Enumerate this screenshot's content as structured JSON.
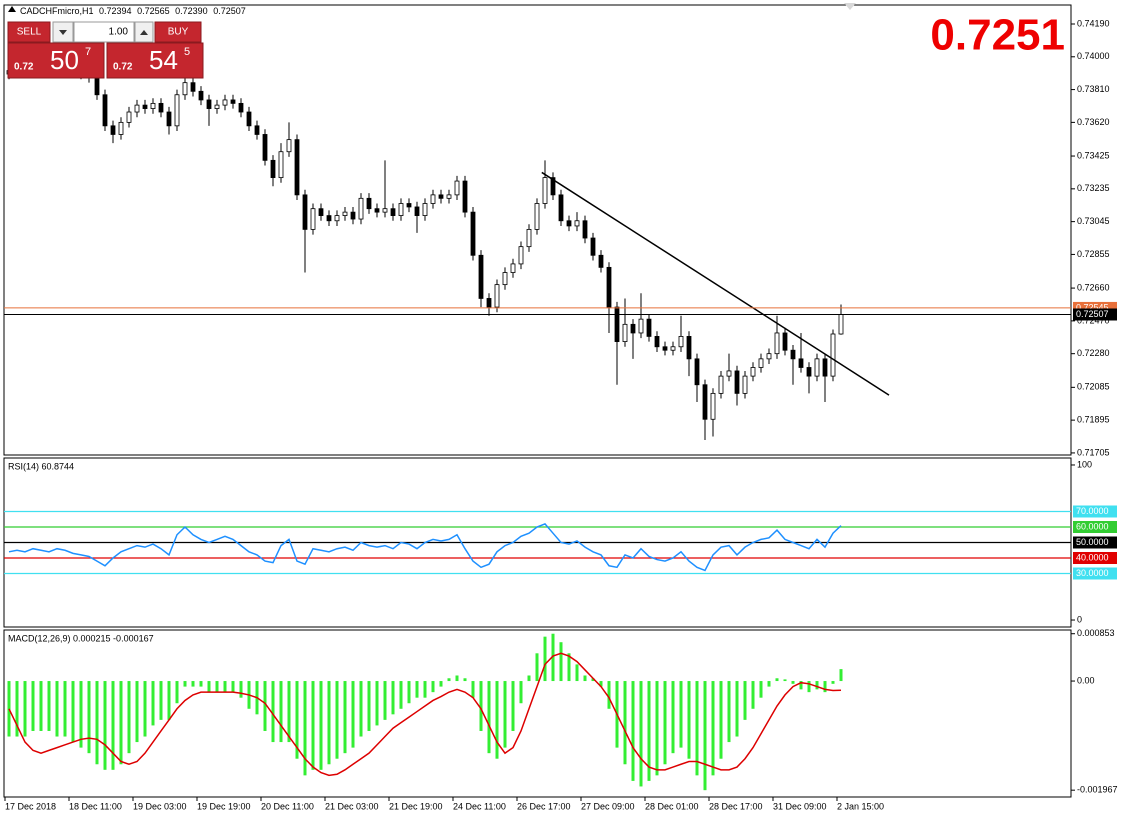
{
  "header": {
    "symbol": "CADCHFmicro,H1",
    "ohlc": [
      "0.72394",
      "0.72565",
      "0.72390",
      "0.72507"
    ]
  },
  "trade_panel": {
    "sell": "SELL",
    "buy": "BUY",
    "lots": "1.00",
    "sell_price": {
      "prefix": "0.72",
      "big": "50",
      "small": "7"
    },
    "buy_price": {
      "prefix": "0.72",
      "big": "54",
      "small": "5"
    }
  },
  "big_price": "0.7251",
  "chart_data": [
    {
      "type": "candlestick",
      "bull_color": "#ffffff",
      "bear_color": "#000000",
      "outline_color": "#000000",
      "ylim": [
        0.71693,
        0.743
      ],
      "yticks": [
        {
          "value": 0.7419,
          "label": "0.74190"
        },
        {
          "value": 0.74,
          "label": "0.74000"
        },
        {
          "value": 0.7381,
          "label": "0.73810"
        },
        {
          "value": 0.7362,
          "label": "0.73620"
        },
        {
          "value": 0.73425,
          "label": "0.73425"
        },
        {
          "value": 0.73235,
          "label": "0.73235"
        },
        {
          "value": 0.73045,
          "label": "0.73045"
        },
        {
          "value": 0.72855,
          "label": "0.72855"
        },
        {
          "value": 0.7266,
          "label": "0.72660"
        },
        {
          "value": 0.7247,
          "label": "0.72470"
        },
        {
          "value": 0.7228,
          "label": "0.72280"
        },
        {
          "value": 0.72085,
          "label": "0.72085"
        },
        {
          "value": 0.71895,
          "label": "0.71895"
        },
        {
          "value": 0.71705,
          "label": "0.71705"
        }
      ],
      "open": [
        0.739,
        0.7392,
        0.7396,
        0.7394,
        0.7398,
        0.7395,
        0.7393,
        0.7396,
        0.7394,
        0.7391,
        0.739,
        0.7388,
        0.7378,
        0.736,
        0.7355,
        0.7362,
        0.7368,
        0.7372,
        0.737,
        0.7373,
        0.7368,
        0.736,
        0.7378,
        0.7385,
        0.738,
        0.7375,
        0.737,
        0.7372,
        0.7375,
        0.7373,
        0.7368,
        0.736,
        0.7355,
        0.734,
        0.733,
        0.7345,
        0.7352,
        0.732,
        0.73,
        0.7312,
        0.7308,
        0.7305,
        0.7308,
        0.731,
        0.7306,
        0.7318,
        0.7312,
        0.731,
        0.7312,
        0.7308,
        0.7315,
        0.7313,
        0.7308,
        0.7315,
        0.732,
        0.7318,
        0.732,
        0.7328,
        0.731,
        0.7285,
        0.726,
        0.7255,
        0.7268,
        0.7275,
        0.728,
        0.729,
        0.73,
        0.7315,
        0.733,
        0.732,
        0.7305,
        0.7302,
        0.7305,
        0.7295,
        0.7285,
        0.7278,
        0.7255,
        0.7235,
        0.7245,
        0.724,
        0.7248,
        0.7238,
        0.7232,
        0.723,
        0.7232,
        0.7238,
        0.7225,
        0.721,
        0.719,
        0.7205,
        0.7215,
        0.7218,
        0.7205,
        0.7215,
        0.722,
        0.7225,
        0.7228,
        0.724,
        0.723,
        0.7225,
        0.722,
        0.7215,
        0.7225,
        0.7215,
        0.72394
      ],
      "high": [
        0.7395,
        0.7399,
        0.7399,
        0.7401,
        0.7401,
        0.7398,
        0.7399,
        0.7399,
        0.7397,
        0.7394,
        0.7393,
        0.7391,
        0.7381,
        0.7363,
        0.7365,
        0.7371,
        0.7375,
        0.7375,
        0.7376,
        0.7376,
        0.7371,
        0.7381,
        0.739,
        0.7388,
        0.7383,
        0.7378,
        0.7375,
        0.7378,
        0.7378,
        0.7376,
        0.7371,
        0.7363,
        0.7358,
        0.7343,
        0.735,
        0.7362,
        0.7355,
        0.7323,
        0.7315,
        0.7315,
        0.7311,
        0.7311,
        0.7313,
        0.7313,
        0.7321,
        0.7321,
        0.7315,
        0.734,
        0.7315,
        0.7318,
        0.7318,
        0.7316,
        0.7318,
        0.7323,
        0.7323,
        0.7323,
        0.7331,
        0.7331,
        0.7313,
        0.7288,
        0.7263,
        0.7271,
        0.7278,
        0.7283,
        0.7293,
        0.7303,
        0.7318,
        0.734,
        0.7333,
        0.7323,
        0.7308,
        0.731,
        0.7308,
        0.7298,
        0.7288,
        0.7281,
        0.7258,
        0.726,
        0.7248,
        0.7263,
        0.7251,
        0.7241,
        0.7235,
        0.7235,
        0.725,
        0.7241,
        0.7228,
        0.7213,
        0.7208,
        0.7218,
        0.7228,
        0.7221,
        0.7218,
        0.7223,
        0.7228,
        0.7231,
        0.725,
        0.7243,
        0.7233,
        0.724,
        0.7223,
        0.7228,
        0.7228,
        0.7242,
        0.72565
      ],
      "low": [
        0.7387,
        0.7389,
        0.7391,
        0.7391,
        0.7392,
        0.739,
        0.739,
        0.7391,
        0.7388,
        0.7387,
        0.7385,
        0.7375,
        0.7357,
        0.735,
        0.7352,
        0.7359,
        0.7365,
        0.7367,
        0.7367,
        0.7365,
        0.7355,
        0.7357,
        0.7375,
        0.7377,
        0.7372,
        0.736,
        0.7367,
        0.7369,
        0.737,
        0.7365,
        0.7357,
        0.7352,
        0.7337,
        0.7325,
        0.7327,
        0.7342,
        0.7317,
        0.7275,
        0.7297,
        0.7305,
        0.7302,
        0.7302,
        0.7305,
        0.7303,
        0.7303,
        0.7309,
        0.7307,
        0.7307,
        0.7305,
        0.7305,
        0.731,
        0.7298,
        0.7305,
        0.7312,
        0.7315,
        0.7315,
        0.7317,
        0.7307,
        0.7282,
        0.7255,
        0.725,
        0.7252,
        0.7265,
        0.7272,
        0.7277,
        0.7287,
        0.7297,
        0.7312,
        0.7317,
        0.7302,
        0.7299,
        0.7299,
        0.7292,
        0.7282,
        0.7275,
        0.724,
        0.721,
        0.7232,
        0.7225,
        0.7237,
        0.7235,
        0.7229,
        0.7227,
        0.7227,
        0.7229,
        0.7215,
        0.72,
        0.7178,
        0.718,
        0.7202,
        0.7212,
        0.7198,
        0.7202,
        0.7212,
        0.7217,
        0.7222,
        0.7225,
        0.7227,
        0.721,
        0.7217,
        0.7205,
        0.7212,
        0.72,
        0.7212,
        0.7239
      ],
      "close": [
        0.7392,
        0.7396,
        0.7394,
        0.7398,
        0.7395,
        0.7393,
        0.7396,
        0.7394,
        0.7391,
        0.739,
        0.7388,
        0.7378,
        0.736,
        0.7355,
        0.7362,
        0.7368,
        0.7372,
        0.737,
        0.7373,
        0.7368,
        0.736,
        0.7378,
        0.7385,
        0.738,
        0.7375,
        0.737,
        0.7372,
        0.7375,
        0.7373,
        0.7368,
        0.736,
        0.7355,
        0.734,
        0.733,
        0.7345,
        0.7352,
        0.732,
        0.73,
        0.7312,
        0.7308,
        0.7305,
        0.7308,
        0.731,
        0.7306,
        0.7318,
        0.7312,
        0.731,
        0.7312,
        0.7308,
        0.7315,
        0.7313,
        0.7308,
        0.7315,
        0.732,
        0.7318,
        0.732,
        0.7328,
        0.731,
        0.7285,
        0.726,
        0.7255,
        0.7268,
        0.7275,
        0.728,
        0.729,
        0.73,
        0.7315,
        0.733,
        0.732,
        0.7305,
        0.7302,
        0.7305,
        0.7295,
        0.7285,
        0.7278,
        0.7255,
        0.7235,
        0.7245,
        0.724,
        0.7248,
        0.7238,
        0.7232,
        0.723,
        0.7232,
        0.7238,
        0.7225,
        0.721,
        0.719,
        0.7205,
        0.7215,
        0.7218,
        0.7205,
        0.7215,
        0.722,
        0.7225,
        0.7228,
        0.724,
        0.723,
        0.7225,
        0.722,
        0.7215,
        0.7225,
        0.7215,
        0.72394,
        0.72507
      ],
      "trendline": {
        "x": [
          66.6,
          110
        ],
        "y": [
          0.7333,
          0.7204
        ],
        "color": "#000000"
      },
      "price_lines": [
        {
          "value": 0.72545,
          "label": "0.72545",
          "color": "#e8703a"
        },
        {
          "value": 0.72507,
          "label": "0.72507",
          "color": "#000000"
        }
      ]
    },
    {
      "type": "line",
      "title": "RSI(14) 60.8744",
      "ylim": [
        -4.5,
        104.5
      ],
      "yticks": [
        100,
        0
      ],
      "levels": [
        {
          "value": 70,
          "label": "70.0000",
          "color": "#40e0f0"
        },
        {
          "value": 60,
          "label": "60.0000",
          "color": "#32cd32"
        },
        {
          "value": 50,
          "label": "50.0000",
          "color": "#000000"
        },
        {
          "value": 40,
          "label": "40.0000",
          "color": "#e00000"
        },
        {
          "value": 30,
          "label": "30.0000",
          "color": "#40e0f0"
        }
      ],
      "series": [
        {
          "color": "#1e90ff",
          "values": [
            44,
            45,
            44,
            46,
            45,
            44,
            46,
            45,
            43,
            42,
            41,
            38,
            35,
            40,
            44,
            46,
            48,
            47,
            49,
            46,
            42,
            55,
            60,
            55,
            52,
            50,
            52,
            54,
            52,
            48,
            44,
            42,
            38,
            37,
            48,
            52,
            38,
            36,
            46,
            45,
            44,
            46,
            47,
            45,
            50,
            48,
            47,
            48,
            46,
            50,
            49,
            46,
            50,
            52,
            51,
            52,
            55,
            46,
            38,
            34,
            36,
            44,
            48,
            50,
            54,
            56,
            60,
            62,
            56,
            50,
            49,
            51,
            47,
            44,
            42,
            35,
            34,
            42,
            40,
            46,
            41,
            39,
            38,
            40,
            44,
            38,
            34,
            32,
            42,
            47,
            48,
            42,
            47,
            50,
            52,
            53,
            58,
            52,
            50,
            48,
            46,
            52,
            47,
            56,
            60.8744
          ]
        }
      ]
    },
    {
      "type": "bar",
      "title": "MACD(12,26,9) 0.000215 -0.000167",
      "ylim": [
        -0.00209,
        0.00092
      ],
      "yticks": [
        0.000853,
        {
          "value": 0,
          "label": "0.00"
        },
        -0.001967
      ],
      "categories": [
        "17 Dec 2018",
        null,
        null,
        null,
        null,
        null,
        null,
        null,
        "18 Dec 11:00",
        null,
        null,
        null,
        null,
        null,
        null,
        null,
        "19 Dec 03:00",
        null,
        null,
        null,
        null,
        null,
        null,
        null,
        "19 Dec 19:00",
        null,
        null,
        null,
        null,
        null,
        null,
        null,
        "20 Dec 11:00",
        null,
        null,
        null,
        null,
        null,
        null,
        null,
        "21 Dec 03:00",
        null,
        null,
        null,
        null,
        null,
        null,
        null,
        "21 Dec 19:00",
        null,
        null,
        null,
        null,
        null,
        null,
        null,
        "24 Dec 11:00",
        null,
        null,
        null,
        null,
        null,
        null,
        null,
        "26 Dec 17:00",
        null,
        null,
        null,
        null,
        null,
        null,
        null,
        "27 Dec 09:00",
        null,
        null,
        null,
        null,
        null,
        null,
        null,
        "28 Dec 01:00",
        null,
        null,
        null,
        null,
        null,
        null,
        null,
        "28 Dec 17:00",
        null,
        null,
        null,
        null,
        null,
        null,
        null,
        "31 Dec 09:00",
        null,
        null,
        null,
        null,
        null,
        null,
        null,
        "2 Jan 15:00"
      ],
      "series": [
        {
          "type": "bar",
          "color": "#33ee33",
          "values": [
            -0.001,
            -0.001,
            -0.001,
            -0.0009,
            -0.0009,
            -0.0009,
            -0.001,
            -0.001,
            -0.0011,
            -0.0012,
            -0.0013,
            -0.0015,
            -0.0016,
            -0.0016,
            -0.0015,
            -0.0013,
            -0.0011,
            -0.001,
            -0.0008,
            -0.0007,
            -0.0007,
            -0.0004,
            -0.0001,
            -0.0001,
            -0.0001,
            -0.0002,
            -0.0002,
            -0.0002,
            -0.0002,
            -0.0003,
            -0.0005,
            -0.0006,
            -0.0009,
            -0.0011,
            -0.0011,
            -0.0011,
            -0.0014,
            -0.0017,
            -0.0016,
            -0.0016,
            -0.0015,
            -0.0014,
            -0.0013,
            -0.0012,
            -0.001,
            -0.0009,
            -0.0008,
            -0.0007,
            -0.0006,
            -0.0005,
            -0.0004,
            -0.0003,
            -0.0003,
            -0.0002,
            -0.0001,
            5e-05,
            0.0001,
            5e-05,
            -0.0003,
            -0.0009,
            -0.0013,
            -0.0014,
            -0.0012,
            -0.0009,
            -0.0004,
            0.0001,
            0.0005,
            0.0008,
            0.000853,
            0.0007,
            0.0005,
            0.0003,
            0.0001,
            5e-05,
            -0.0001,
            -0.0005,
            -0.0012,
            -0.0015,
            -0.0018,
            -0.0019,
            -0.0018,
            -0.0017,
            -0.0015,
            -0.0013,
            -0.0012,
            -0.0014,
            -0.0017,
            -0.001967,
            -0.0017,
            -0.0014,
            -0.0011,
            -0.001,
            -0.0007,
            -0.0005,
            -0.0003,
            -0.0001,
            5e-05,
            3e-05,
            -5e-05,
            -0.00015,
            -0.0002,
            -0.00015,
            -0.0002,
            -5e-05,
            0.000215
          ]
        },
        {
          "type": "line",
          "color": "#dd0000",
          "values": [
            -0.0005,
            -0.0008,
            -0.0011,
            -0.00125,
            -0.0013,
            -0.00125,
            -0.0012,
            -0.00115,
            -0.0011,
            -0.00105,
            -0.00103,
            -0.00105,
            -0.00115,
            -0.0013,
            -0.00145,
            -0.0015,
            -0.00145,
            -0.0013,
            -0.0011,
            -0.0009,
            -0.0007,
            -0.0005,
            -0.00035,
            -0.00025,
            -0.0002,
            -0.0002,
            -0.0002,
            -0.0002,
            -0.0002,
            -0.00022,
            -0.00025,
            -0.0003,
            -0.0004,
            -0.0006,
            -0.0008,
            -0.001,
            -0.0012,
            -0.0014,
            -0.00155,
            -0.00165,
            -0.0017,
            -0.00168,
            -0.0016,
            -0.0015,
            -0.0014,
            -0.0013,
            -0.00115,
            -0.001,
            -0.00085,
            -0.00075,
            -0.00065,
            -0.00055,
            -0.00045,
            -0.00035,
            -0.00028,
            -0.0002,
            -0.00015,
            -0.0002,
            -0.0003,
            -0.0005,
            -0.0008,
            -0.0011,
            -0.0013,
            -0.0012,
            -0.0009,
            -0.0005,
            -0.0001,
            0.0003,
            0.00045,
            0.0005,
            0.00045,
            0.00035,
            0.0002,
            5e-05,
            -0.0001,
            -0.0003,
            -0.0006,
            -0.0009,
            -0.0012,
            -0.0014,
            -0.00155,
            -0.0016,
            -0.0016,
            -0.00155,
            -0.0015,
            -0.00145,
            -0.00145,
            -0.0015,
            -0.00155,
            -0.0016,
            -0.0016,
            -0.00155,
            -0.0014,
            -0.0012,
            -0.00095,
            -0.0007,
            -0.00045,
            -0.00025,
            -0.0001,
            -3e-05,
            -5e-05,
            -0.0001,
            -0.00015,
            -0.00017,
            -0.000167
          ]
        }
      ]
    }
  ]
}
